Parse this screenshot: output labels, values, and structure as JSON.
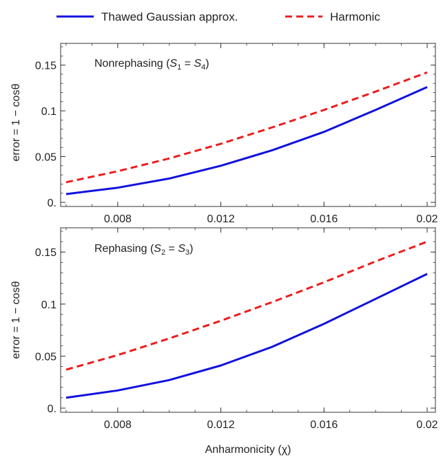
{
  "chart_data": [
    {
      "type": "line",
      "title_parts": [
        "Nonrephasing (",
        "S",
        "1",
        " = ",
        "S",
        "4",
        ")"
      ],
      "xlabel": "",
      "ylabel": "error = 1 − cosθ",
      "xlim": [
        0.006,
        0.02
      ],
      "ylim": [
        0,
        0.17
      ],
      "x_ticks": [
        0.008,
        0.012,
        0.016,
        0.02
      ],
      "x_tick_labels": [
        "0.008",
        "0.012",
        "0.016",
        "0.02"
      ],
      "y_ticks": [
        0,
        0.05,
        0.1,
        0.15
      ],
      "y_tick_labels": [
        "0.",
        "0.05",
        "0.1",
        "0.15"
      ],
      "x": [
        0.006,
        0.008,
        0.01,
        0.012,
        0.014,
        0.016,
        0.018,
        0.02
      ],
      "series": [
        {
          "name": "Thawed Gaussian approx.",
          "color": "#1010e0",
          "style": "solid",
          "values": [
            0.009,
            0.016,
            0.026,
            0.04,
            0.057,
            0.077,
            0.101,
            0.126
          ]
        },
        {
          "name": "Harmonic",
          "color": "#ee1c1c",
          "style": "dashed",
          "values": [
            0.022,
            0.034,
            0.048,
            0.064,
            0.082,
            0.101,
            0.121,
            0.142
          ]
        }
      ]
    },
    {
      "type": "line",
      "title_parts": [
        "Rephasing (",
        "S",
        "2",
        " = ",
        "S",
        "3",
        ")"
      ],
      "xlabel": "Anharmonicity (χ)",
      "ylabel": "error = 1 − cosθ",
      "xlim": [
        0.006,
        0.02
      ],
      "ylim": [
        0,
        0.17
      ],
      "x_ticks": [
        0.008,
        0.012,
        0.016,
        0.02
      ],
      "x_tick_labels": [
        "0.008",
        "0.012",
        "0.016",
        "0.02"
      ],
      "y_ticks": [
        0,
        0.05,
        0.1,
        0.15
      ],
      "y_tick_labels": [
        "0.",
        "0.05",
        "0.1",
        "0.15"
      ],
      "x": [
        0.006,
        0.008,
        0.01,
        0.012,
        0.014,
        0.016,
        0.018,
        0.02
      ],
      "series": [
        {
          "name": "Thawed Gaussian approx.",
          "color": "#1010e0",
          "style": "solid",
          "values": [
            0.01,
            0.017,
            0.027,
            0.041,
            0.059,
            0.081,
            0.105,
            0.129
          ]
        },
        {
          "name": "Harmonic",
          "color": "#ee1c1c",
          "style": "dashed",
          "values": [
            0.037,
            0.051,
            0.067,
            0.084,
            0.102,
            0.121,
            0.141,
            0.16
          ]
        }
      ]
    }
  ],
  "legend": {
    "position": "top-center",
    "items": [
      {
        "label": "Thawed Gaussian approx.",
        "color": "#1010e0",
        "style": "solid"
      },
      {
        "label": "Harmonic",
        "color": "#ee1c1c",
        "style": "dashed"
      }
    ]
  }
}
